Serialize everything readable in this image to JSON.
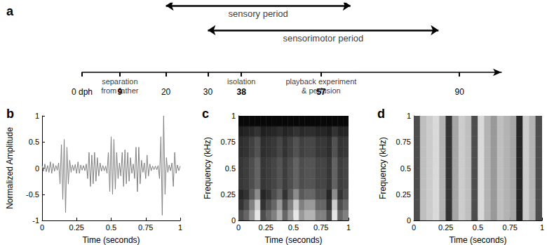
{
  "chart_data": [
    {
      "type": "timeline",
      "panel_label": "a",
      "xlim": [
        0,
        100
      ],
      "xticks": [
        {
          "value": 0,
          "label": "0 dph"
        },
        9,
        20,
        30,
        38,
        57,
        90
      ],
      "periods": [
        {
          "label": "sensory period",
          "start": 20,
          "end": 64
        },
        {
          "label": "sensorimotor period",
          "start": 30,
          "end": 85
        }
      ],
      "events": [
        {
          "day": 9,
          "label": "separation\nfrom father"
        },
        {
          "day": 38,
          "label": "isolation"
        },
        {
          "day": 57,
          "label": "playback experiment\n& perfusion"
        }
      ]
    },
    {
      "type": "line",
      "panel_label": "b",
      "x_label": "Time (seconds)",
      "y_label": "Normalized Amplitude",
      "xlim": [
        0,
        1
      ],
      "xticks": [
        0,
        0.25,
        0.5,
        0.75,
        1
      ],
      "ylim": [
        -1,
        1
      ],
      "yticks": [
        -1,
        -0.5,
        0,
        0.5,
        1
      ],
      "color": "#808080",
      "x": [
        0,
        0.01,
        0.02,
        0.03,
        0.04,
        0.05,
        0.06,
        0.07,
        0.08,
        0.09,
        0.1,
        0.11,
        0.12,
        0.13,
        0.14,
        0.15,
        0.16,
        0.17,
        0.18,
        0.19,
        0.2,
        0.21,
        0.22,
        0.23,
        0.24,
        0.25,
        0.26,
        0.27,
        0.28,
        0.29,
        0.3,
        0.31,
        0.32,
        0.33,
        0.34,
        0.35,
        0.36,
        0.37,
        0.38,
        0.39,
        0.4,
        0.41,
        0.42,
        0.43,
        0.44,
        0.45,
        0.46,
        0.47,
        0.48,
        0.49,
        0.5,
        0.51,
        0.52,
        0.53,
        0.54,
        0.55,
        0.56,
        0.57,
        0.58,
        0.59,
        0.6,
        0.61,
        0.62,
        0.63,
        0.64,
        0.65,
        0.66,
        0.67,
        0.68,
        0.69,
        0.7,
        0.71,
        0.72,
        0.73,
        0.74,
        0.75,
        0.76,
        0.77,
        0.78,
        0.79,
        0.8,
        0.81,
        0.82,
        0.83,
        0.84,
        0.85,
        0.86,
        0.87,
        0.88,
        0.89,
        0.9,
        0.91,
        0.92,
        0.93,
        0.94,
        0.95,
        0.96,
        0.97,
        0.98,
        0.99,
        1
      ],
      "values": [
        0.05,
        -0.06,
        0.08,
        -0.07,
        0.05,
        -0.08,
        0.12,
        -0.1,
        0.09,
        -0.06,
        0.05,
        -0.04,
        0.1,
        -0.3,
        0.45,
        -0.6,
        0.55,
        -0.85,
        0.4,
        -0.3,
        0.15,
        -0.08,
        0.06,
        -0.05,
        0.07,
        -0.1,
        0.12,
        -0.1,
        0.06,
        -0.04,
        0.05,
        -0.05,
        0.08,
        -0.2,
        0.3,
        -0.35,
        0.25,
        -0.3,
        0.3,
        -0.25,
        0.2,
        -0.15,
        0.1,
        -0.06,
        0.05,
        -0.05,
        0.04,
        -0.1,
        0.3,
        -0.45,
        0.6,
        -0.5,
        0.55,
        -0.4,
        0.3,
        -0.2,
        0.1,
        -0.15,
        0.3,
        -0.35,
        0.35,
        -0.3,
        0.3,
        -0.25,
        0.2,
        -0.1,
        0.08,
        -0.2,
        0.4,
        -0.45,
        0.4,
        -0.3,
        0.15,
        -0.08,
        0.1,
        -0.2,
        0.25,
        -0.15,
        0.08,
        -0.05,
        0.04,
        -0.03,
        0.04,
        -0.03,
        0.05,
        -0.2,
        0.6,
        -0.9,
        1.0,
        -0.5,
        0.2,
        -0.08,
        0.06,
        -0.05,
        0.1,
        -0.35,
        0.3,
        -0.1,
        0.06,
        -0.05,
        0.04
      ]
    },
    {
      "type": "heatmap",
      "panel_label": "c",
      "x_label": "Time (seconds)",
      "y_label": "Frequency (kHz)",
      "xlim": [
        0,
        1
      ],
      "xticks": [
        0,
        0.25,
        0.5,
        0.75,
        1
      ],
      "ylim": [
        0,
        1
      ],
      "yticks": [
        0,
        0.25,
        0.5,
        0.75,
        1
      ],
      "x_bins": [
        0,
        0.05,
        0.1,
        0.15,
        0.2,
        0.25,
        0.3,
        0.35,
        0.4,
        0.45,
        0.5,
        0.55,
        0.6,
        0.65,
        0.7,
        0.75,
        0.8,
        0.85,
        0.9,
        0.95,
        1
      ],
      "y_bins": [
        0,
        0.1,
        0.2,
        0.3,
        0.4,
        0.5,
        0.6,
        0.7,
        0.8,
        0.9,
        1
      ],
      "cells": [
        [
          0.3,
          0.4,
          0.6,
          0.9,
          0.3,
          0.4,
          0.5,
          0.7,
          0.4,
          0.6,
          0.9,
          0.6,
          0.7,
          0.7,
          0.5,
          0.5,
          0.3,
          0.9,
          0.4,
          0.5
        ],
        [
          0.2,
          0.3,
          0.5,
          0.8,
          0.2,
          0.3,
          0.4,
          0.6,
          0.3,
          0.5,
          0.8,
          0.5,
          0.6,
          0.6,
          0.4,
          0.4,
          0.2,
          0.8,
          0.3,
          0.4
        ],
        [
          0.15,
          0.2,
          0.35,
          0.55,
          0.15,
          0.2,
          0.3,
          0.4,
          0.2,
          0.35,
          0.55,
          0.35,
          0.4,
          0.4,
          0.3,
          0.3,
          0.15,
          0.55,
          0.2,
          0.3
        ],
        [
          0.21,
          0.24,
          0.3,
          0.39,
          0.21,
          0.24,
          0.27,
          0.33,
          0.24,
          0.3,
          0.39,
          0.3,
          0.33,
          0.33,
          0.27,
          0.27,
          0.21,
          0.39,
          0.24,
          0.27
        ],
        [
          0.21,
          0.24,
          0.3,
          0.39,
          0.21,
          0.24,
          0.27,
          0.33,
          0.24,
          0.3,
          0.39,
          0.3,
          0.33,
          0.33,
          0.27,
          0.27,
          0.21,
          0.39,
          0.24,
          0.27
        ],
        [
          0.21,
          0.24,
          0.3,
          0.39,
          0.21,
          0.24,
          0.27,
          0.33,
          0.24,
          0.3,
          0.39,
          0.3,
          0.33,
          0.33,
          0.27,
          0.27,
          0.21,
          0.39,
          0.24,
          0.27
        ],
        [
          0.18,
          0.2,
          0.25,
          0.32,
          0.18,
          0.2,
          0.22,
          0.28,
          0.2,
          0.25,
          0.32,
          0.25,
          0.28,
          0.28,
          0.22,
          0.22,
          0.18,
          0.32,
          0.2,
          0.22
        ],
        [
          0.18,
          0.2,
          0.25,
          0.32,
          0.18,
          0.2,
          0.22,
          0.28,
          0.2,
          0.25,
          0.32,
          0.25,
          0.28,
          0.28,
          0.22,
          0.22,
          0.18,
          0.32,
          0.2,
          0.22
        ],
        [
          0.12,
          0.14,
          0.16,
          0.2,
          0.12,
          0.14,
          0.15,
          0.18,
          0.14,
          0.16,
          0.2,
          0.16,
          0.18,
          0.18,
          0.15,
          0.15,
          0.12,
          0.2,
          0.14,
          0.15
        ],
        [
          0.03,
          0.03,
          0.03,
          0.03,
          0.03,
          0.03,
          0.03,
          0.03,
          0.03,
          0.03,
          0.03,
          0.03,
          0.03,
          0.03,
          0.03,
          0.03,
          0.03,
          0.03,
          0.03,
          0.03
        ]
      ]
    },
    {
      "type": "heatmap",
      "panel_label": "d",
      "x_label": "Time (seconds)",
      "y_label": "Frequency (kHz)",
      "xlim": [
        0,
        1
      ],
      "xticks": [
        0,
        0.25,
        0.5,
        0.75,
        1
      ],
      "ylim": [
        0,
        1
      ],
      "yticks": [
        0,
        0.25,
        0.5,
        0.75,
        1
      ],
      "x_bins": [
        0,
        0.05,
        0.1,
        0.15,
        0.2,
        0.25,
        0.3,
        0.35,
        0.4,
        0.45,
        0.5,
        0.55,
        0.6,
        0.65,
        0.7,
        0.75,
        0.8,
        0.85,
        0.9,
        0.95,
        1
      ],
      "y_bins": [
        0,
        0.1,
        0.2,
        0.3,
        0.4,
        0.5,
        0.6,
        0.7,
        0.8,
        0.9,
        1
      ],
      "cells": [
        [
          0.3,
          0.75,
          0.8,
          0.85,
          0.7,
          0.2,
          0.65,
          0.8,
          0.75,
          0.3,
          0.85,
          0.7,
          0.6,
          0.75,
          0.7,
          0.65,
          0.15,
          0.8,
          0.7,
          0.3
        ],
        [
          0.3,
          0.75,
          0.8,
          0.85,
          0.7,
          0.2,
          0.65,
          0.8,
          0.75,
          0.3,
          0.85,
          0.7,
          0.6,
          0.75,
          0.7,
          0.65,
          0.15,
          0.8,
          0.7,
          0.3
        ],
        [
          0.3,
          0.75,
          0.8,
          0.85,
          0.7,
          0.2,
          0.65,
          0.8,
          0.75,
          0.3,
          0.85,
          0.7,
          0.6,
          0.75,
          0.7,
          0.65,
          0.15,
          0.8,
          0.7,
          0.3
        ],
        [
          0.3,
          0.75,
          0.8,
          0.85,
          0.7,
          0.2,
          0.65,
          0.8,
          0.75,
          0.3,
          0.85,
          0.7,
          0.6,
          0.75,
          0.7,
          0.65,
          0.15,
          0.8,
          0.7,
          0.3
        ],
        [
          0.3,
          0.75,
          0.8,
          0.85,
          0.7,
          0.2,
          0.65,
          0.8,
          0.75,
          0.3,
          0.85,
          0.7,
          0.6,
          0.75,
          0.7,
          0.65,
          0.15,
          0.8,
          0.7,
          0.3
        ],
        [
          0.3,
          0.75,
          0.8,
          0.85,
          0.7,
          0.2,
          0.65,
          0.8,
          0.75,
          0.3,
          0.85,
          0.7,
          0.6,
          0.75,
          0.7,
          0.65,
          0.15,
          0.8,
          0.7,
          0.3
        ],
        [
          0.3,
          0.75,
          0.8,
          0.85,
          0.7,
          0.2,
          0.65,
          0.8,
          0.75,
          0.3,
          0.85,
          0.7,
          0.6,
          0.75,
          0.7,
          0.65,
          0.15,
          0.8,
          0.7,
          0.3
        ],
        [
          0.3,
          0.75,
          0.8,
          0.85,
          0.7,
          0.2,
          0.65,
          0.8,
          0.75,
          0.3,
          0.85,
          0.7,
          0.6,
          0.75,
          0.7,
          0.65,
          0.15,
          0.8,
          0.7,
          0.3
        ],
        [
          0.3,
          0.75,
          0.8,
          0.85,
          0.7,
          0.2,
          0.65,
          0.8,
          0.75,
          0.3,
          0.85,
          0.7,
          0.6,
          0.75,
          0.7,
          0.65,
          0.15,
          0.8,
          0.7,
          0.3
        ],
        [
          0.3,
          0.75,
          0.8,
          0.85,
          0.7,
          0.2,
          0.65,
          0.8,
          0.75,
          0.3,
          0.85,
          0.7,
          0.6,
          0.75,
          0.7,
          0.65,
          0.15,
          0.8,
          0.7,
          0.3
        ]
      ]
    }
  ]
}
